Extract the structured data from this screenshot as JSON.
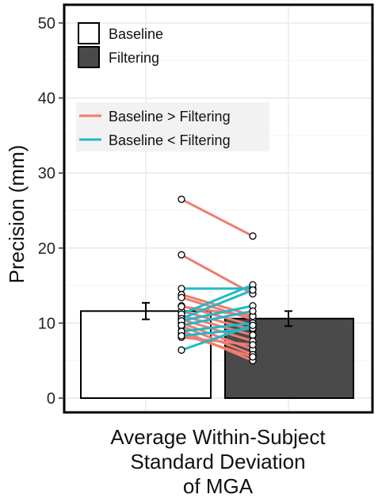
{
  "chart_data": {
    "type": "bar",
    "ylabel": "Precision (mm)",
    "xlabel": [
      "Average Within-Subject",
      "Standard Deviation",
      "of MGA"
    ],
    "ylim": [
      0,
      52
    ],
    "yticks": [
      0,
      10,
      20,
      30,
      40,
      50
    ],
    "grid": true,
    "categories": [
      "Baseline",
      "Filtering"
    ],
    "bars": [
      {
        "name": "Baseline",
        "value": 11.6,
        "error": 1.1,
        "color": "#ffffff"
      },
      {
        "name": "Filtering",
        "value": 10.6,
        "error": 1.0,
        "color": "#4a4a4a"
      }
    ],
    "bar_legend": [
      {
        "label": "Baseline",
        "color": "#ffffff"
      },
      {
        "label": "Filtering",
        "color": "#4a4a4a"
      }
    ],
    "line_legend": [
      {
        "label": "Baseline > Filtering",
        "color": "#f07c72"
      },
      {
        "label": "Baseline < Filtering",
        "color": "#20b9c6"
      }
    ],
    "pairs": [
      [
        26.5,
        21.6
      ],
      [
        19.1,
        13.9
      ],
      [
        14.6,
        14.6
      ],
      [
        13.8,
        11.0
      ],
      [
        13.4,
        10.5
      ],
      [
        12.3,
        9.7
      ],
      [
        11.6,
        9.1
      ],
      [
        11.0,
        8.4
      ],
      [
        10.5,
        7.6
      ],
      [
        10.0,
        6.5
      ],
      [
        9.6,
        5.8
      ],
      [
        9.0,
        5.0
      ],
      [
        8.5,
        5.5
      ],
      [
        8.1,
        7.1
      ],
      [
        12.2,
        10.9
      ],
      [
        11.2,
        15.1
      ],
      [
        10.6,
        14.4
      ],
      [
        10.3,
        12.3
      ],
      [
        9.7,
        11.6
      ],
      [
        8.9,
        10.0
      ],
      [
        8.3,
        9.3
      ],
      [
        6.4,
        9.7
      ]
    ]
  }
}
